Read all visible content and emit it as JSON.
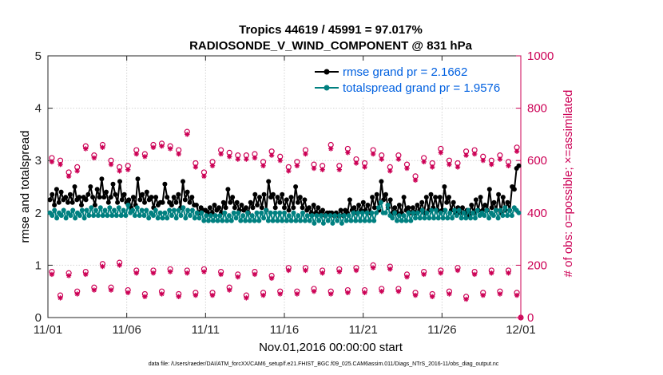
{
  "chart_data": {
    "type": "line",
    "title_line1": "Tropics 44619 / 45991 = 97.017%",
    "title_line2": "RADIOSONDE_V_WIND_COMPONENT @ 831 hPa",
    "xlabel": "Nov.01,2016 00:00:00 start",
    "ylabel_left": "rmse and totalspread",
    "ylabel_right": "# of obs: o=possible; ×=assimilated",
    "footer": "data file: /Users/raeder/DAI/ATM_forcXX/CAM6_setup/f.e21.FHIST_BGC.f09_025.CAM6assim.011/Diags_NTrS_2016-11/obs_diag_output.nc",
    "xlim": [
      0,
      30
    ],
    "ylim_left": [
      0,
      5
    ],
    "ylim_right": [
      0,
      1000
    ],
    "x_ticks": [
      0,
      5,
      10,
      15,
      20,
      25,
      30
    ],
    "x_tick_labels": [
      "11/01",
      "11/06",
      "11/11",
      "11/16",
      "11/21",
      "11/26",
      "12/01"
    ],
    "y_left_ticks": [
      "0",
      "1",
      "2",
      "3",
      "4",
      "5"
    ],
    "y_right_ticks": [
      "0",
      "200",
      "400",
      "600",
      "800",
      "1000"
    ],
    "colors": {
      "rmse": "#000000",
      "spread": "#008080",
      "obs": "#cc0055",
      "axis": "#262626"
    },
    "series": [
      {
        "name": "rmse grand pr = 2.1662",
        "axis": "left",
        "values": [
          2.25,
          2.35,
          2.15,
          2.45,
          2.2,
          2.4,
          2.25,
          2.3,
          2.2,
          2.35,
          2.2,
          2.5,
          2.25,
          2.3,
          2.15,
          2.3,
          2.25,
          2.35,
          2.5,
          2.3,
          2.15,
          2.45,
          2.3,
          2.65,
          2.3,
          2.4,
          2.2,
          2.3,
          2.55,
          2.35,
          2.2,
          2.6,
          2.25,
          2.35,
          2.2,
          2.25,
          2.1,
          2.3,
          2.15,
          2.65,
          2.25,
          2.35,
          2.2,
          2.4,
          2.25,
          2.3,
          2.1,
          2.3,
          2.15,
          2.2,
          2.2,
          2.55,
          2.3,
          2.2,
          2.15,
          2.3,
          2.2,
          2.35,
          2.1,
          2.6,
          2.25,
          2.4,
          2.2,
          2.3,
          2.15,
          2.15,
          2.0,
          2.1,
          2.05,
          2.05,
          2.0,
          2.1,
          2.0,
          2.15,
          2.05,
          2.1,
          2.0,
          2.2,
          2.1,
          2.45,
          2.2,
          2.3,
          2.1,
          2.2,
          2.05,
          2.15,
          2.05,
          2.1,
          2.0,
          2.2,
          2.1,
          2.35,
          2.15,
          2.3,
          2.1,
          2.35,
          2.05,
          2.6,
          2.3,
          2.35,
          2.1,
          2.3,
          2.2,
          2.35,
          2.1,
          2.25,
          2.05,
          2.3,
          2.1,
          2.5,
          2.2,
          2.3,
          2.1,
          2.25,
          2.05,
          2.1,
          2.0,
          2.15,
          2.0,
          2.1,
          2.0,
          2.05,
          1.95,
          2.0,
          2.0,
          2.0,
          1.95,
          2.0,
          1.95,
          2.05,
          1.95,
          2.05,
          2.0,
          2.25,
          2.05,
          2.1,
          2.0,
          2.15,
          2.05,
          2.2,
          2.05,
          2.15,
          2.0,
          2.3,
          2.1,
          2.35,
          2.05,
          2.6,
          2.25,
          2.35,
          2.1,
          2.25,
          2.0,
          2.1,
          2.0,
          2.15,
          2.0,
          2.3,
          2.05,
          2.1,
          2.0,
          2.1,
          2.0,
          2.15,
          2.05,
          2.2,
          2.0,
          2.3,
          2.05,
          2.35,
          2.1,
          2.3,
          2.05,
          2.3,
          2.05,
          2.5,
          2.2,
          2.3,
          2.05,
          2.2,
          2.0,
          2.1,
          2.0,
          2.1,
          2.0,
          2.05,
          1.95,
          2.15,
          2.0,
          2.25,
          2.05,
          2.3,
          2.05,
          2.15,
          2.05,
          2.45,
          2.1,
          2.2,
          2.05,
          2.35,
          2.0,
          2.3,
          2.05,
          2.2,
          2.05,
          2.5,
          2.45,
          2.85,
          2.9
        ]
      },
      {
        "name": "totalspread grand pr = 1.9576",
        "axis": "left",
        "values": [
          2.0,
          1.95,
          2.05,
          1.9,
          2.0,
          1.95,
          2.05,
          1.9,
          2.0,
          1.95,
          2.05,
          1.9,
          2.0,
          1.95,
          2.05,
          1.9,
          2.05,
          1.95,
          2.1,
          1.95,
          2.05,
          1.95,
          2.1,
          1.95,
          2.05,
          1.95,
          2.1,
          1.95,
          2.05,
          1.95,
          2.1,
          1.95,
          2.05,
          1.95,
          2.15,
          2.0,
          2.05,
          1.95,
          2.1,
          1.95,
          2.05,
          1.95,
          2.05,
          1.9,
          2.0,
          1.95,
          2.05,
          1.9,
          2.0,
          1.9,
          2.0,
          1.9,
          2.05,
          1.95,
          2.05,
          1.9,
          2.05,
          1.95,
          2.1,
          1.9,
          2.05,
          1.95,
          2.05,
          1.9,
          2.0,
          1.9,
          2.0,
          1.85,
          1.95,
          1.85,
          1.95,
          1.85,
          1.95,
          1.85,
          1.95,
          1.85,
          2.0,
          1.85,
          1.95,
          1.85,
          2.0,
          1.9,
          2.0,
          1.85,
          1.95,
          1.85,
          2.0,
          1.85,
          1.95,
          1.85,
          2.0,
          1.85,
          2.0,
          1.9,
          2.05,
          1.85,
          2.0,
          1.85,
          2.0,
          1.85,
          2.0,
          1.85,
          2.0,
          1.85,
          1.95,
          1.85,
          2.0,
          1.85,
          1.95,
          1.85,
          2.0,
          1.85,
          1.95,
          1.85,
          1.95,
          1.8,
          1.95,
          1.85,
          1.95,
          1.8,
          1.95,
          1.85,
          1.95,
          1.8,
          1.95,
          1.85,
          1.95,
          1.8,
          1.95,
          1.85,
          1.95,
          1.85,
          2.0,
          1.85,
          2.0,
          1.85,
          2.0,
          1.85,
          2.0,
          1.85,
          2.0,
          1.85,
          2.0,
          2.1,
          2.2,
          2.0,
          2.0,
          2.15,
          1.95,
          1.9,
          2.0,
          1.85,
          1.95,
          1.85,
          1.95,
          1.85,
          2.0,
          1.85,
          2.0,
          1.9,
          2.0,
          1.9,
          2.05,
          1.9,
          2.0,
          1.9,
          2.05,
          1.9,
          2.05,
          1.9,
          2.0,
          1.9,
          2.05,
          1.9,
          2.0,
          1.9,
          2.05,
          1.95,
          2.05,
          1.9,
          2.0,
          1.9,
          2.05,
          1.9,
          2.0,
          1.9,
          2.05,
          1.95,
          2.0,
          1.95,
          2.05,
          1.9,
          2.0,
          1.95,
          2.05,
          1.9,
          2.05,
          1.95,
          2.1,
          1.95,
          2.05,
          1.95,
          2.1,
          2.05,
          2.0
        ]
      }
    ],
    "obs_counts": {
      "axis": "right",
      "night_possible": [
        610,
        600,
        555,
        575,
        655,
        620,
        660,
        600,
        575,
        580,
        640,
        625,
        660,
        665,
        655,
        640,
        710,
        590,
        555,
        595,
        640,
        630,
        620,
        620,
        625,
        595,
        635,
        615,
        575,
        595,
        640,
        585,
        580,
        660,
        580,
        645,
        605,
        590,
        640,
        620,
        575,
        620,
        585,
        540,
        610,
        590,
        645,
        600,
        590,
        635,
        640,
        615,
        600,
        620,
        595,
        650
      ],
      "night_assimilated": [
        595,
        585,
        540,
        560,
        645,
        610,
        650,
        585,
        560,
        565,
        625,
        615,
        650,
        655,
        645,
        625,
        700,
        575,
        540,
        580,
        625,
        615,
        605,
        605,
        610,
        580,
        620,
        600,
        560,
        580,
        625,
        570,
        565,
        645,
        565,
        630,
        590,
        575,
        625,
        605,
        560,
        605,
        570,
        525,
        595,
        575,
        630,
        585,
        575,
        620,
        625,
        600,
        585,
        605,
        580,
        635
      ],
      "day_possible": [
        175,
        85,
        170,
        100,
        175,
        115,
        205,
        115,
        210,
        105,
        180,
        90,
        180,
        100,
        185,
        90,
        180,
        95,
        185,
        95,
        175,
        115,
        165,
        85,
        175,
        95,
        160,
        100,
        190,
        100,
        190,
        110,
        180,
        100,
        185,
        105,
        190,
        105,
        200,
        110,
        195,
        110,
        165,
        95,
        175,
        90,
        180,
        100,
        190,
        80,
        175,
        95,
        180,
        100,
        180,
        95
      ],
      "day_assimilated": [
        165,
        75,
        160,
        90,
        165,
        105,
        195,
        105,
        200,
        95,
        170,
        80,
        170,
        90,
        175,
        80,
        170,
        85,
        175,
        85,
        165,
        105,
        155,
        75,
        165,
        85,
        150,
        90,
        180,
        90,
        180,
        100,
        170,
        90,
        175,
        95,
        180,
        95,
        190,
        100,
        185,
        100,
        155,
        85,
        165,
        80,
        170,
        90,
        180,
        70,
        165,
        85,
        170,
        90,
        170,
        85
      ]
    }
  }
}
